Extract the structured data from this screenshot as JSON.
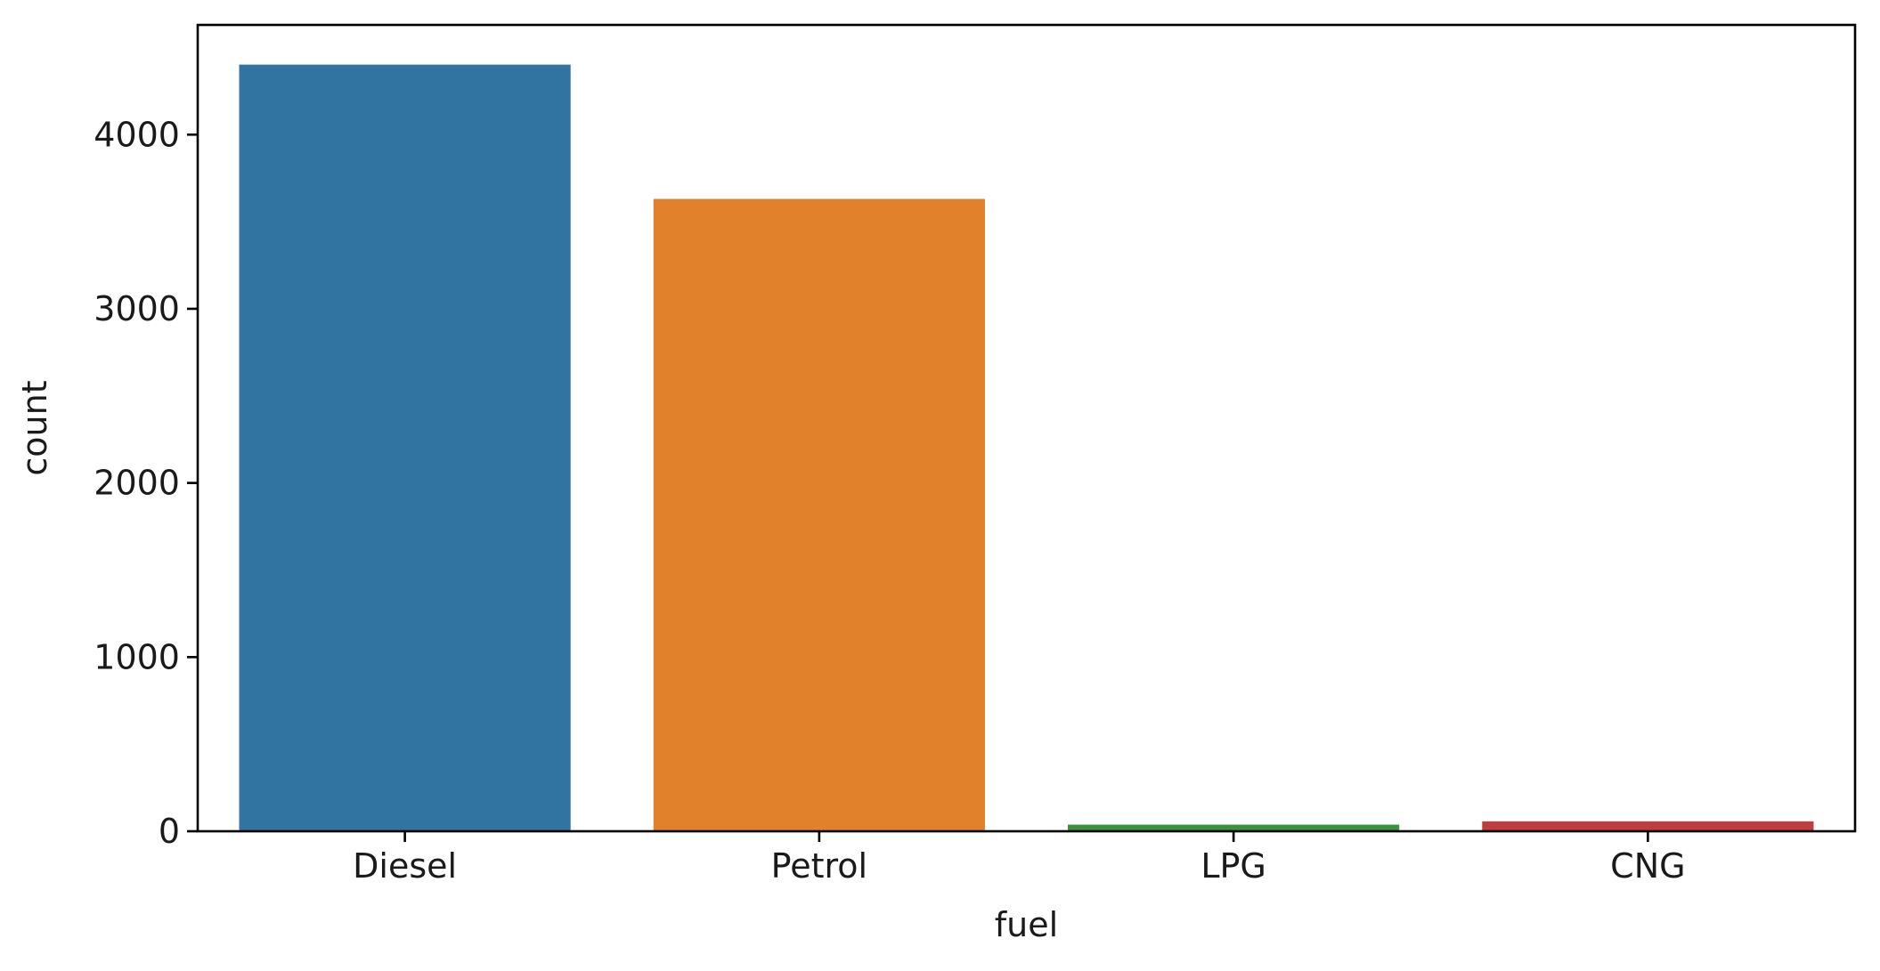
{
  "chart_data": {
    "type": "bar",
    "title": "",
    "xlabel": "fuel",
    "ylabel": "count",
    "categories": [
      "Diesel",
      "Petrol",
      "LPG",
      "CNG"
    ],
    "values": [
      4402,
      3631,
      38,
      57
    ],
    "colors": [
      "#3274a1",
      "#e1812c",
      "#3a923a",
      "#c03d3e"
    ],
    "ylim": [
      0,
      4630
    ],
    "yticks": [
      0,
      1000,
      2000,
      3000,
      4000
    ],
    "ytick_labels": [
      "0",
      "1000",
      "2000",
      "3000",
      "4000"
    ],
    "grid": false,
    "legend": "none"
  }
}
